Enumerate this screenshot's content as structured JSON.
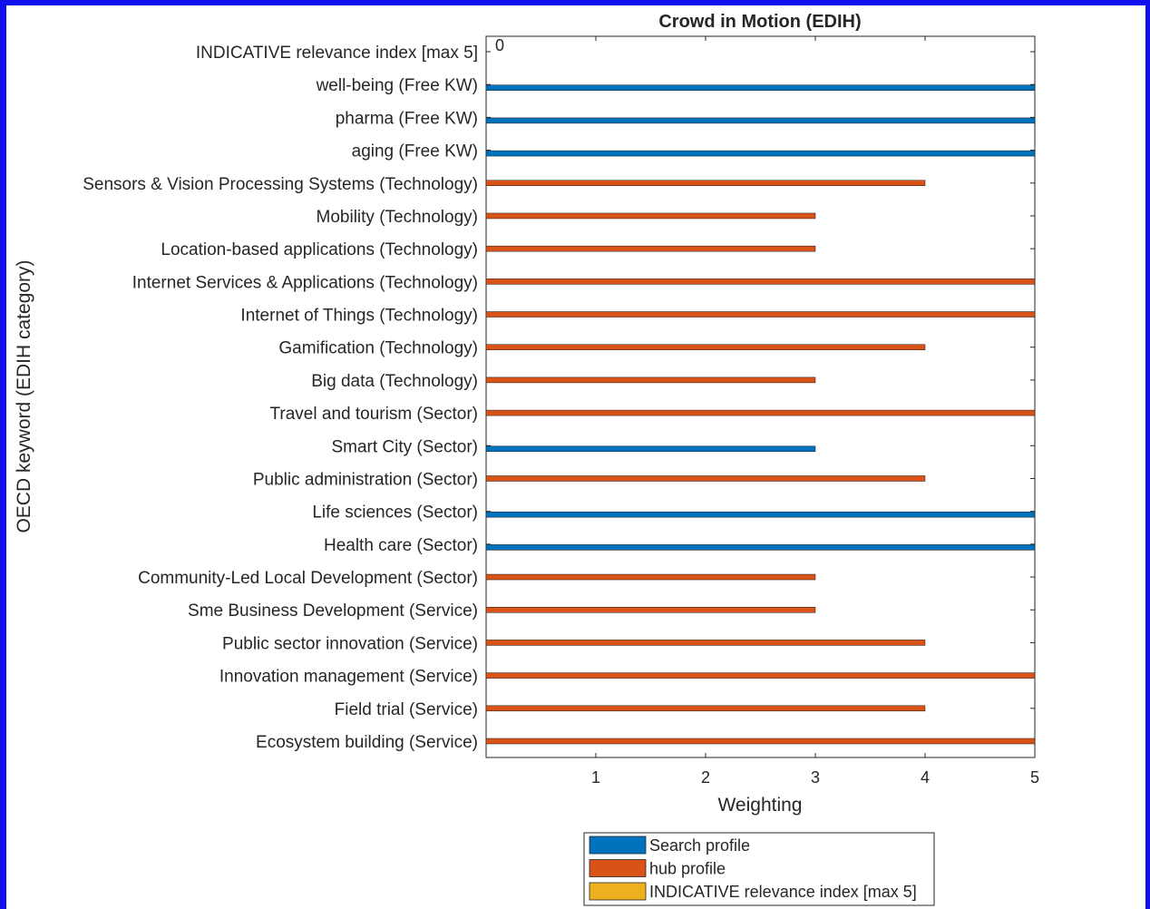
{
  "chart_data": {
    "type": "bar",
    "orientation": "horizontal",
    "title": "Crowd in Motion (EDIH)",
    "xlabel": "Weighting",
    "ylabel": "OECD keyword (EDIH category)",
    "xlim": [
      0,
      5
    ],
    "xticks": [
      "1",
      "2",
      "3",
      "4",
      "5"
    ],
    "categories": [
      "INDICATIVE relevance index [max 5]",
      "well-being (Free KW)",
      "pharma (Free KW)",
      "aging (Free KW)",
      "Sensors & Vision Processing Systems (Technology)",
      "Mobility (Technology)",
      "Location-based applications (Technology)",
      "Internet Services & Applications (Technology)",
      "Internet of Things (Technology)",
      "Gamification (Technology)",
      "Big data (Technology)",
      "Travel and tourism (Sector)",
      "Smart City (Sector)",
      "Public administration (Sector)",
      "Life sciences (Sector)",
      "Health care (Sector)",
      "Community-Led Local Development (Sector)",
      "Sme Business Development (Service)",
      "Public sector innovation (Service)",
      "Innovation management (Service)",
      "Field trial (Service)",
      "Ecosystem building (Service)"
    ],
    "series": [
      {
        "name": "Search profile",
        "color": "#0072BD",
        "values": [
          0,
          5,
          5,
          5,
          0,
          0,
          0,
          0,
          0,
          0,
          0,
          0,
          3,
          0,
          5,
          5,
          0,
          0,
          0,
          0,
          0,
          0
        ]
      },
      {
        "name": "hub profile",
        "color": "#D95319",
        "values": [
          0,
          0,
          0,
          0,
          4,
          3,
          3,
          5,
          5,
          4,
          3,
          5,
          0,
          4,
          0,
          0,
          3,
          3,
          4,
          5,
          4,
          5
        ]
      },
      {
        "name": "INDICATIVE relevance index [max 5]",
        "color": "#EDB120",
        "values": [
          0,
          0,
          0,
          0,
          0,
          0,
          0,
          0,
          0,
          0,
          0,
          0,
          0,
          0,
          0,
          0,
          0,
          0,
          0,
          0,
          0,
          0
        ]
      }
    ],
    "annotations": [
      {
        "text": "0",
        "category": "INDICATIVE relevance index [max 5]"
      }
    ],
    "grid": false,
    "legend_position": "bottom"
  }
}
